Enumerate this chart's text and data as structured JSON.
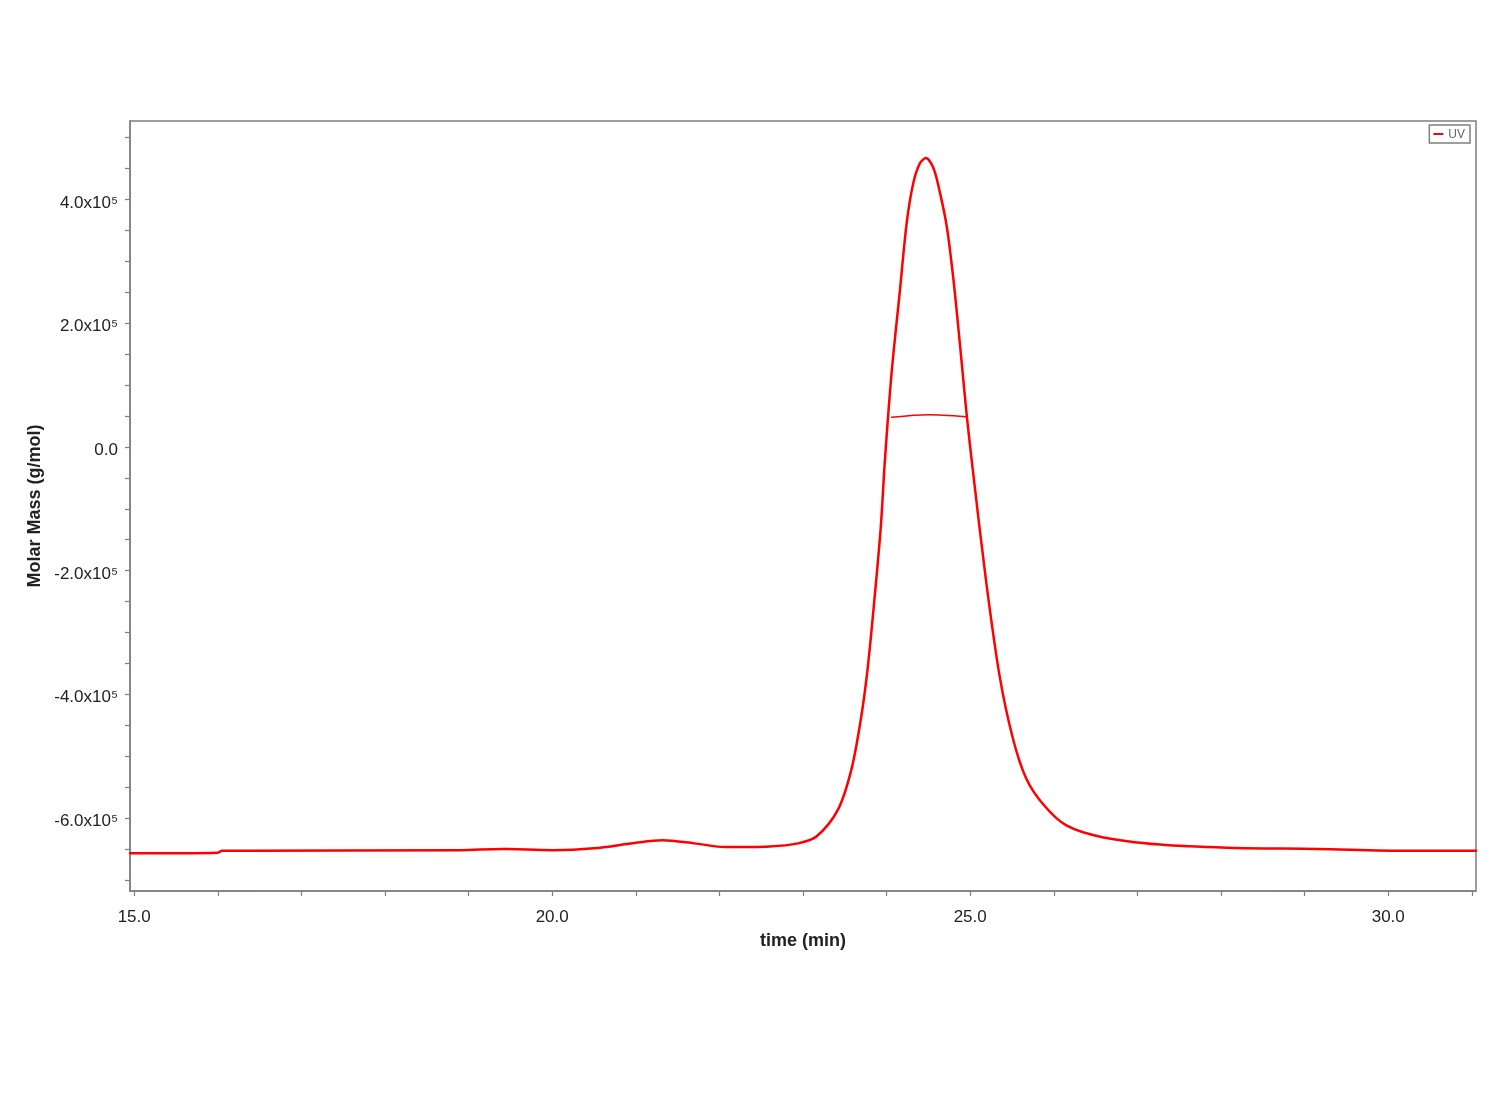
{
  "chart_data": {
    "type": "line",
    "xlabel": "time (min)",
    "ylabel": "Molar Mass (g/mol)",
    "xlim": [
      14.95,
      31.05
    ],
    "xticks": [
      {
        "value": 15,
        "label": "15.0"
      },
      {
        "value": 16,
        "label": null
      },
      {
        "value": 17,
        "label": null
      },
      {
        "value": 18,
        "label": null
      },
      {
        "value": 19,
        "label": null
      },
      {
        "value": 20,
        "label": "20.0"
      },
      {
        "value": 21,
        "label": null
      },
      {
        "value": 22,
        "label": null
      },
      {
        "value": 23,
        "label": null
      },
      {
        "value": 24,
        "label": null
      },
      {
        "value": 25,
        "label": "25.0"
      },
      {
        "value": 26,
        "label": null
      },
      {
        "value": 27,
        "label": null
      },
      {
        "value": 28,
        "label": null
      },
      {
        "value": 29,
        "label": null
      },
      {
        "value": 30,
        "label": "30.0"
      },
      {
        "value": 31,
        "label": null
      }
    ],
    "ylim": [
      -718000,
      527000
    ],
    "yticks": [
      {
        "value": -700000,
        "label": null
      },
      {
        "value": -650000,
        "label": null
      },
      {
        "value": -600000,
        "label": "-6.0x10⁵"
      },
      {
        "value": -550000,
        "label": null
      },
      {
        "value": -500000,
        "label": null
      },
      {
        "value": -450000,
        "label": null
      },
      {
        "value": -400000,
        "label": "-4.0x10⁵"
      },
      {
        "value": -350000,
        "label": null
      },
      {
        "value": -300000,
        "label": null
      },
      {
        "value": -250000,
        "label": null
      },
      {
        "value": -200000,
        "label": "-2.0x10⁵"
      },
      {
        "value": -150000,
        "label": null
      },
      {
        "value": -100000,
        "label": null
      },
      {
        "value": -50000,
        "label": null
      },
      {
        "value": 0,
        "label": "0.0"
      },
      {
        "value": 50000,
        "label": null
      },
      {
        "value": 100000,
        "label": null
      },
      {
        "value": 150000,
        "label": null
      },
      {
        "value": 200000,
        "label": "2.0x10⁵"
      },
      {
        "value": 250000,
        "label": null
      },
      {
        "value": 300000,
        "label": null
      },
      {
        "value": 350000,
        "label": null
      },
      {
        "value": 400000,
        "label": "4.0x10⁵"
      },
      {
        "value": 450000,
        "label": null
      },
      {
        "value": 500000,
        "label": null
      }
    ],
    "grid": false,
    "legend": "top right",
    "marker": "none",
    "series": [
      {
        "name": "UV",
        "color": "#ff0000",
        "x": [
          14.95,
          16.0,
          16.05,
          18.9,
          19.4,
          20.0,
          20.5,
          21.0,
          21.32,
          21.7,
          22.07,
          22.6,
          22.94,
          23.16,
          23.42,
          23.58,
          23.69,
          23.77,
          23.85,
          23.93,
          23.98,
          24.06,
          24.16,
          24.24,
          24.32,
          24.4,
          24.47,
          24.56,
          24.64,
          24.72,
          24.8,
          24.88,
          24.96,
          25.03,
          25.19,
          25.35,
          25.51,
          25.67,
          25.88,
          26.15,
          26.58,
          27.27,
          28.07,
          29.15,
          30.22,
          31.05
        ],
        "values": [
          -657000,
          -656000,
          -653000,
          -652000,
          -650000,
          -652000,
          -649000,
          -640000,
          -636000,
          -641000,
          -647000,
          -646000,
          -641000,
          -630000,
          -586000,
          -521000,
          -442000,
          -362000,
          -253000,
          -130000,
          -21000,
          120000,
          254000,
          362000,
          427000,
          459000,
          467000,
          451000,
          410000,
          356000,
          270000,
          162000,
          49000,
          -36000,
          -217000,
          -369000,
          -471000,
          -536000,
          -579000,
          -612000,
          -631000,
          -643000,
          -648000,
          -650000,
          -653000,
          -653000
        ]
      },
      {
        "color": "#ff0000",
        "x": [
          24.06,
          24.5,
          24.95
        ],
        "values": [
          48000,
          52000,
          49000
        ]
      }
    ]
  }
}
